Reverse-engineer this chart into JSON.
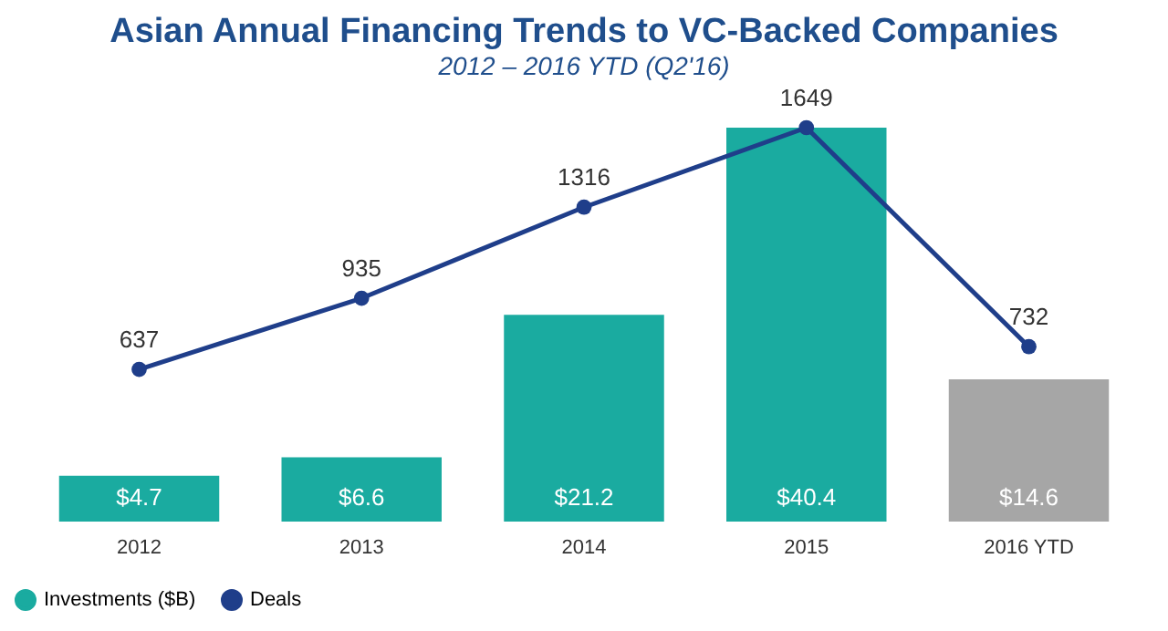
{
  "chart_data": {
    "type": "bar",
    "title": "Asian Annual Financing Trends to VC-Backed Companies",
    "subtitle": "2012 – 2016 YTD (Q2'16)",
    "categories": [
      "2012",
      "2013",
      "2014",
      "2015",
      "2016 YTD"
    ],
    "series": [
      {
        "name": "Investments ($B)",
        "color": "#1aaba0",
        "colors": [
          "#1aaba0",
          "#1aaba0",
          "#1aaba0",
          "#1aaba0",
          "#a6a6a6"
        ],
        "values": [
          4.7,
          6.6,
          21.2,
          40.4,
          14.6
        ],
        "value_labels": [
          "$4.7",
          "$6.6",
          "$21.2",
          "$40.4",
          "$14.6"
        ]
      },
      {
        "name": "Deals",
        "type": "line",
        "axis": "y2",
        "color": "#1f3e8a",
        "marker": "circle",
        "values": [
          637,
          935,
          1316,
          1649,
          732
        ],
        "data_labels": true
      }
    ],
    "legend": "bottom",
    "grid": false
  }
}
